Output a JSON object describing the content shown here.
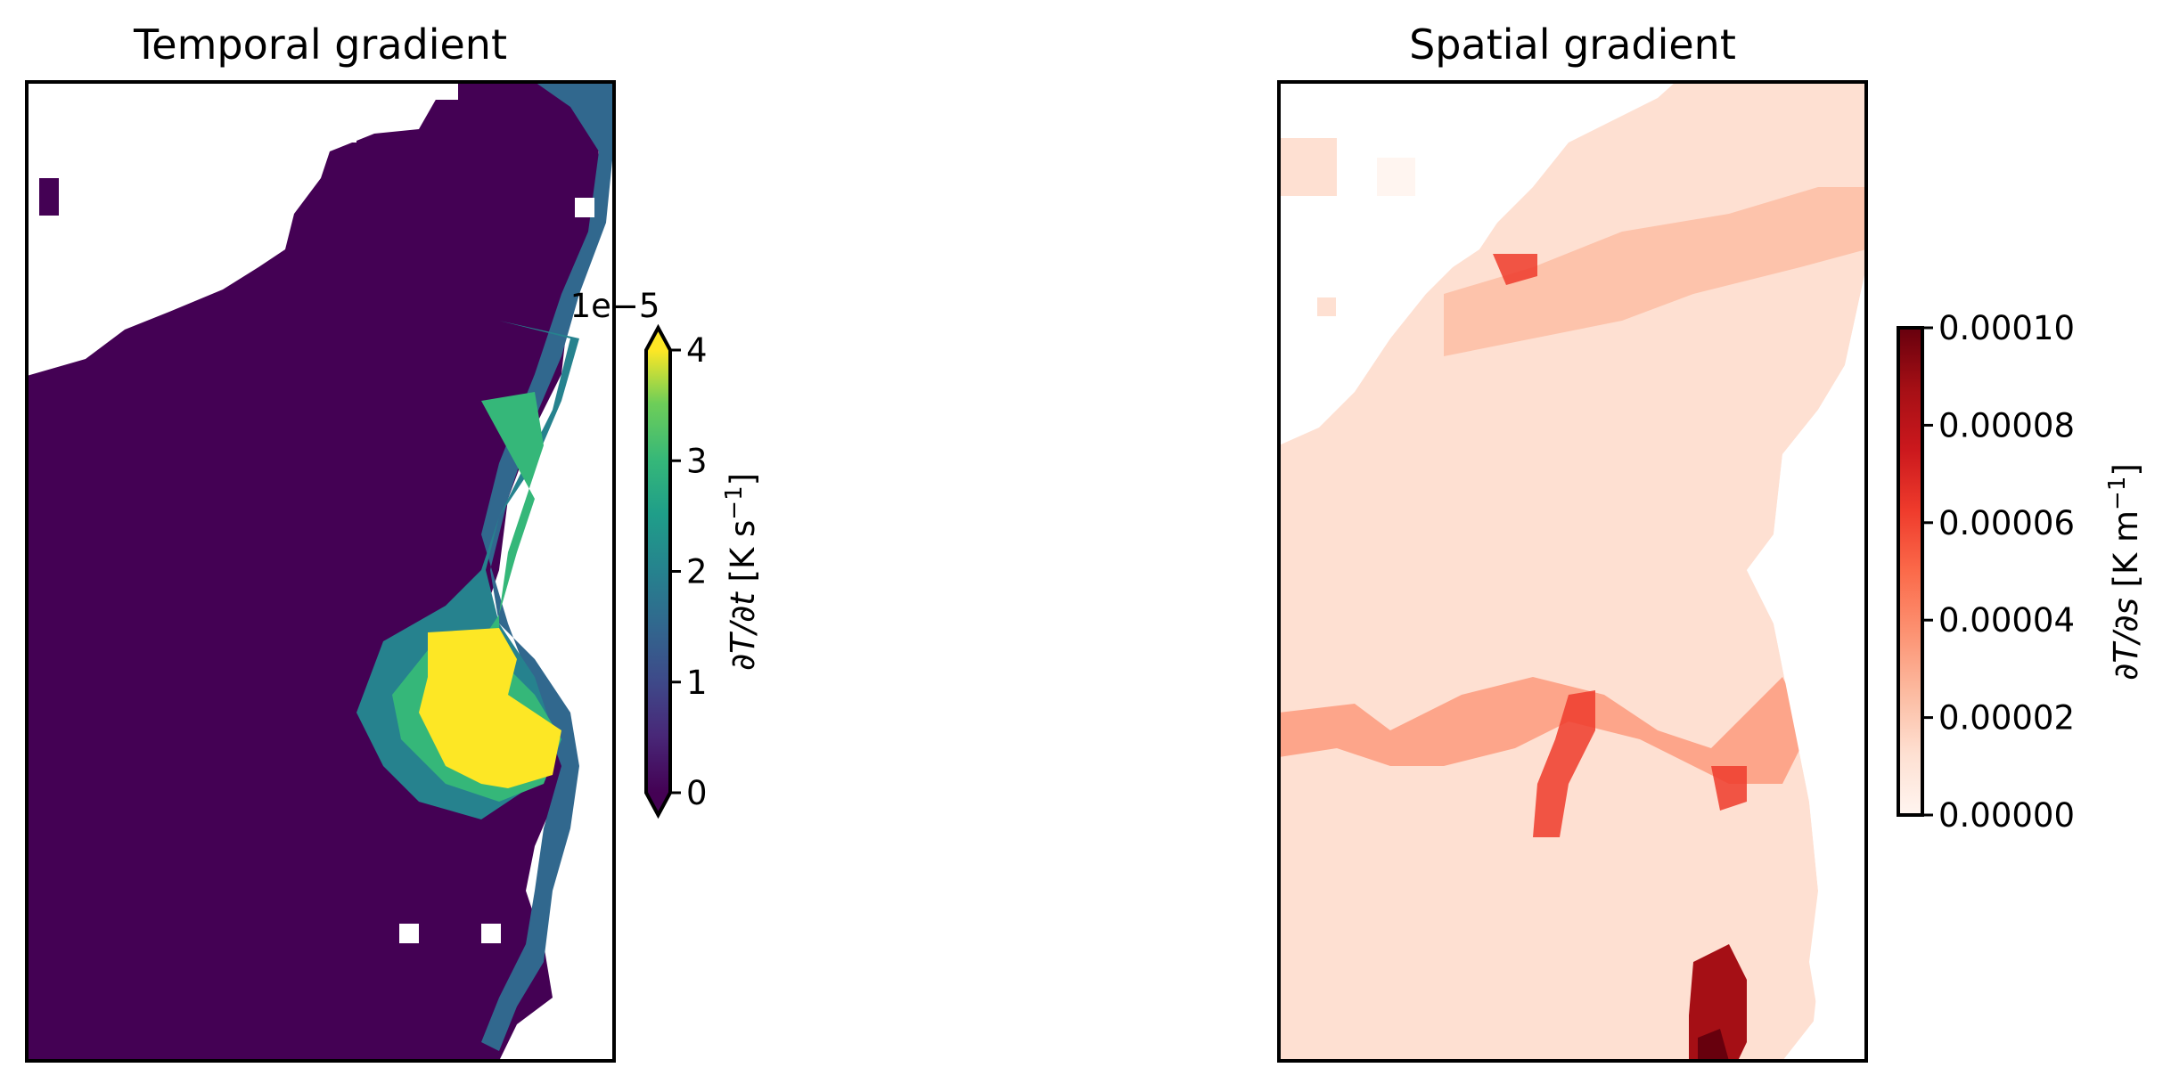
{
  "chart_data": [
    {
      "type": "heatmap",
      "title": "Temporal gradient",
      "colormap": "viridis",
      "grid": false,
      "axes_ticks": false,
      "nan_color": "#ffffff",
      "colorbar": {
        "label_parts": {
          "prefix": "∂T/∂t",
          "unit_open": " [K s",
          "unit_sup": "−1",
          "unit_close": "]"
        },
        "offset_text": "1e−5",
        "min": 0,
        "max": 4,
        "ticks": [
          "0",
          "1",
          "2",
          "3",
          "4"
        ],
        "extend": "both",
        "placement": "right"
      }
    },
    {
      "type": "heatmap",
      "title": "Spatial gradient",
      "colormap": "Reds",
      "grid": false,
      "axes_ticks": false,
      "nan_color": "#ffffff",
      "colorbar": {
        "label_parts": {
          "prefix": "∂T/∂s",
          "unit_open": " [K m",
          "unit_sup": "−1",
          "unit_close": "]"
        },
        "min": 0,
        "max": 0.0001,
        "ticks": [
          "0.00000",
          "0.00002",
          "0.00004",
          "0.00006",
          "0.00008",
          "0.00010"
        ],
        "extend": "neither",
        "placement": "right"
      }
    }
  ]
}
